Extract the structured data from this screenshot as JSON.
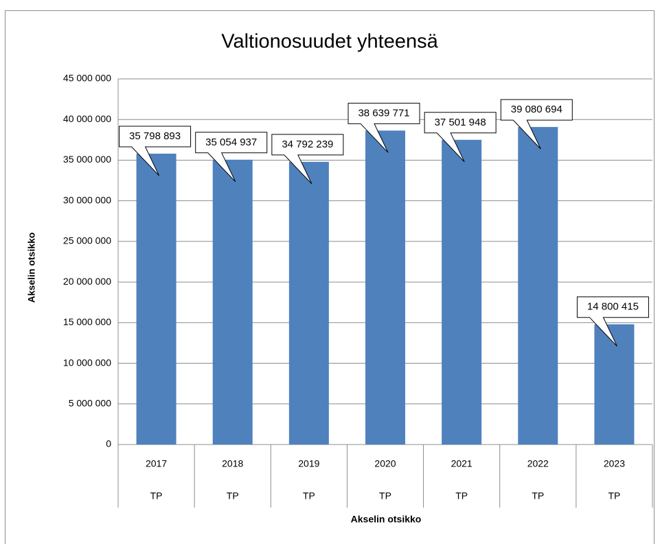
{
  "chart_data": {
    "type": "bar",
    "title": "Valtionosuudet yhteensä",
    "x_label": "Akselin otsikko",
    "y_label": "Akselin otsikko",
    "categories": [
      "2017",
      "2018",
      "2019",
      "2020",
      "2021",
      "2022",
      "2023"
    ],
    "subcategories": [
      "TP",
      "TP",
      "TP",
      "TP",
      "TP",
      "TP",
      "TP"
    ],
    "values": [
      35798893,
      35054937,
      34792239,
      38639771,
      37501948,
      39080694,
      14800415
    ],
    "value_labels": [
      "35 798 893",
      "35 054 937",
      "34 792 239",
      "38 639 771",
      "37 501 948",
      "39 080 694",
      "14 800 415"
    ],
    "color": "#4f81bd",
    "ylim": [
      0,
      45000000
    ],
    "yticks": [
      0,
      {
        "value": 5000000,
        "label": "5 000 000"
      },
      {
        "value": 10000000,
        "label": "10 000 000"
      },
      {
        "value": 15000000,
        "label": "15 000 000"
      },
      {
        "value": 20000000,
        "label": "20 000 000"
      },
      {
        "value": 25000000,
        "label": "25 000 000"
      },
      {
        "value": 30000000,
        "label": "30 000 000"
      },
      {
        "value": 35000000,
        "label": "35 000 000"
      },
      {
        "value": 40000000,
        "label": "40 000 000"
      },
      {
        "value": 45000000,
        "label": "45 000 000"
      }
    ],
    "grid": true
  }
}
